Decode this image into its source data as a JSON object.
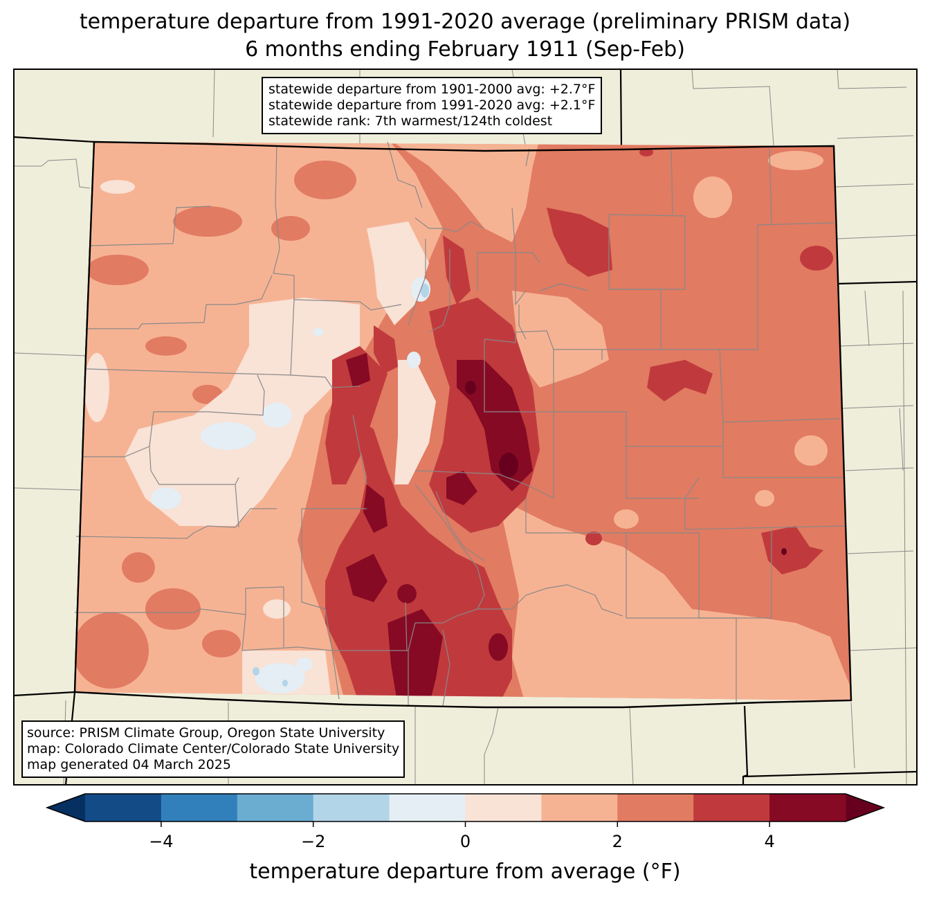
{
  "header": {
    "title_line1": "temperature departure from 1991-2020 average (preliminary PRISM data)",
    "title_line2": "6 months ending February 1911 (Sep-Feb)"
  },
  "stats_box": {
    "lines": [
      "statewide departure from 1901-2000 avg: +2.7°F",
      "statewide departure from 1991-2020 avg: +2.1°F",
      "statewide rank: 7th warmest/124th coldest"
    ]
  },
  "source_box": {
    "lines": [
      "source: PRISM Climate Group, Oregon State University",
      "map: Colorado Climate Center/Colorado State University",
      "map generated 04 March 2025"
    ]
  },
  "colorbar": {
    "label": "temperature departure from average (°F)",
    "bin_edges": [
      -5,
      -4,
      -3,
      -2,
      -1,
      0,
      1,
      2,
      3,
      4,
      5
    ],
    "colors": [
      "#134b87",
      "#3280bb",
      "#6bacd1",
      "#b2d5e7",
      "#e4eef4",
      "#f9e2d6",
      "#f6b394",
      "#e17b62",
      "#c03a3d",
      "#870a24"
    ],
    "under_color": "#053061",
    "over_color": "#67001f",
    "ticks": [
      {
        "value": -4,
        "label": "−4"
      },
      {
        "value": -2,
        "label": "−2"
      },
      {
        "value": 0,
        "label": "0"
      },
      {
        "value": 2,
        "label": "2"
      },
      {
        "value": 4,
        "label": "4"
      }
    ]
  },
  "map_colors": {
    "land_background": "#efeedb",
    "county_lines": "#888888",
    "state_lines": "#000000"
  }
}
